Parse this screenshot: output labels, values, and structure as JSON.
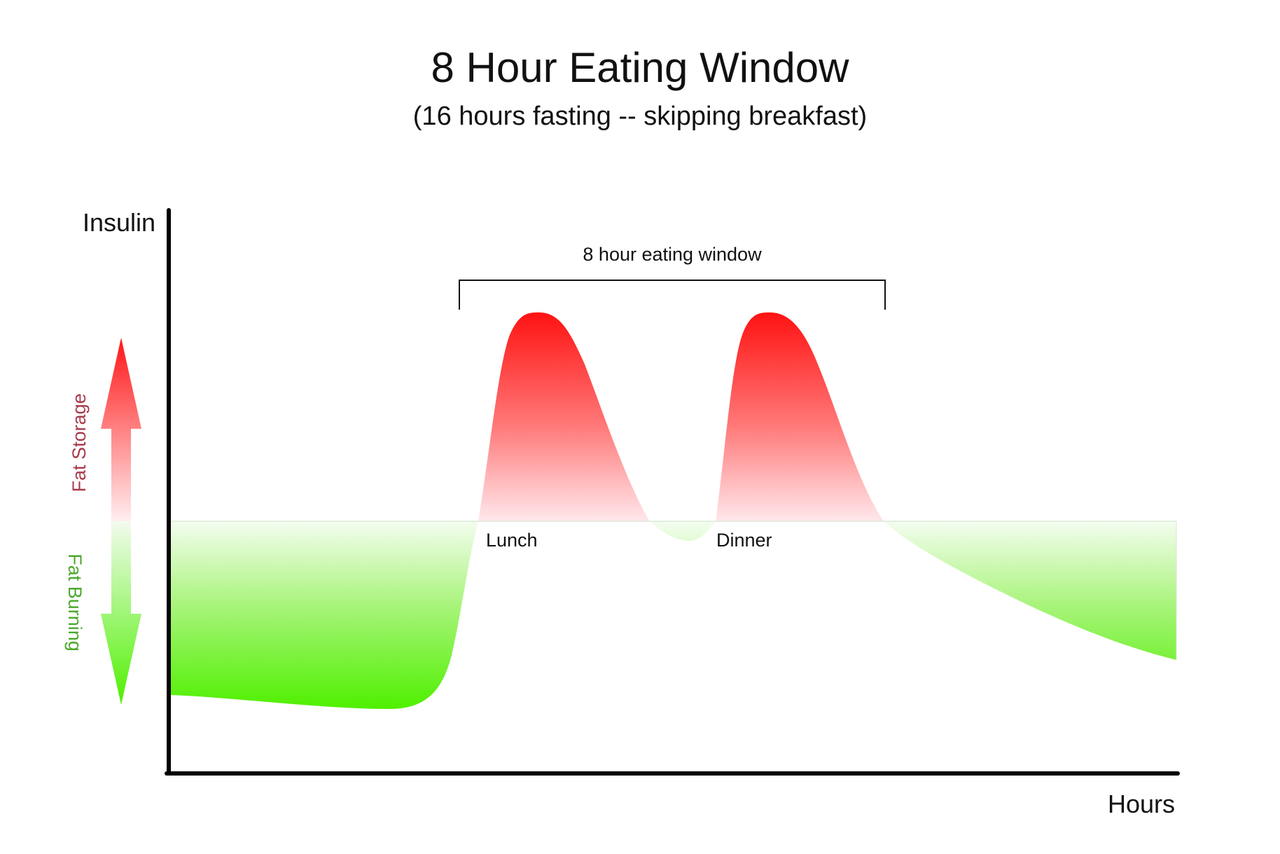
{
  "title": "8 Hour Eating Window",
  "subtitle": "(16 hours fasting -- skipping breakfast)",
  "axes": {
    "y_label": "Insulin",
    "x_label": "Hours"
  },
  "bracket": {
    "label": "8 hour eating window"
  },
  "meals": [
    {
      "label": "Lunch"
    },
    {
      "label": "Dinner"
    }
  ],
  "legend": {
    "up_label": "Fat Storage",
    "down_label": "Fat Burning",
    "storage_color": "#ff1a1a",
    "burning_color": "#55ee11",
    "storage_text_color": "#a83a4a",
    "burning_text_color": "#4aa82a"
  }
}
